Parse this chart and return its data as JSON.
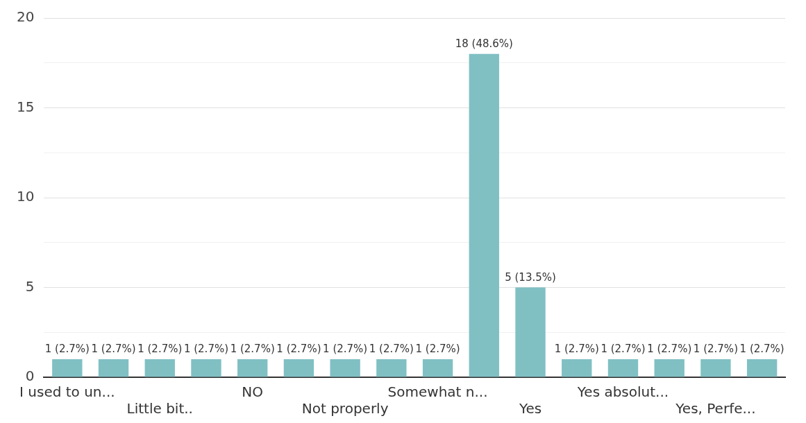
{
  "chart_data": {
    "type": "bar",
    "categories": [
      "I used to un...",
      null,
      "Little bit..",
      null,
      "NO",
      null,
      "Not properly",
      null,
      "Somewhat n...",
      null,
      "Yes",
      null,
      "Yes absolut...",
      null,
      "Yes, Perfe...",
      null
    ],
    "values": [
      1,
      1,
      1,
      1,
      1,
      1,
      1,
      1,
      1,
      18,
      5,
      1,
      1,
      1,
      1,
      1
    ],
    "value_labels": [
      "1 (2.7%)",
      "1 (2.7%)",
      "1 (2.7%)",
      "1 (2.7%)",
      "1 (2.7%)",
      "1 (2.7%)",
      "1 (2.7%)",
      "1 (2.7%)",
      "1 (2.7%)",
      "18 (48.6%)",
      "5 (13.5%)",
      "1 (2.7%)",
      "1 (2.7%)",
      "1 (2.7%)",
      "1 (2.7%)",
      "1 (2.7%)"
    ],
    "color": "#80c0c3",
    "ylim": [
      0,
      20
    ],
    "yticks": [
      0,
      {
        "value": 2.5,
        "label": null
      },
      5,
      {
        "value": 7.5,
        "label": null
      },
      10,
      {
        "value": 12.5,
        "label": null
      },
      15,
      {
        "value": 17.5,
        "label": null
      },
      20
    ],
    "grid": "y"
  }
}
